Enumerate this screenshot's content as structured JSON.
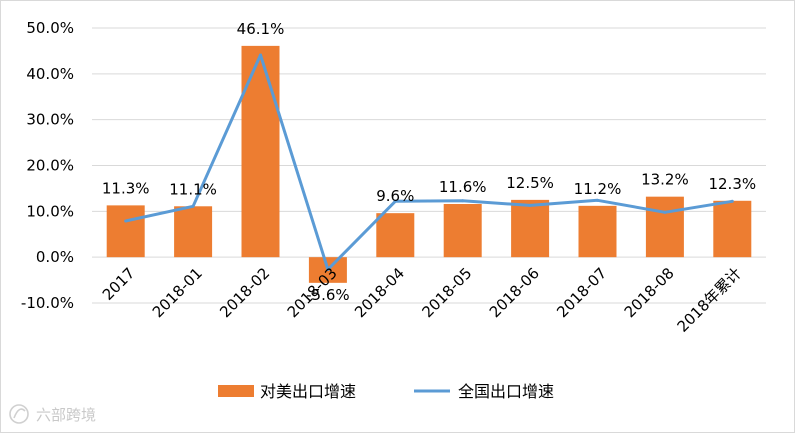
{
  "chart_data": {
    "type": "bar+line",
    "categories": [
      "2017",
      "2018-01",
      "2018-02",
      "2018-03",
      "2018-04",
      "2018-05",
      "2018-06",
      "2018-07",
      "2018-08",
      "2018年累计"
    ],
    "series": [
      {
        "name": "对美出口增速",
        "kind": "bar",
        "values": [
          11.3,
          11.1,
          46.1,
          -5.6,
          9.6,
          11.6,
          12.5,
          11.2,
          13.2,
          12.3
        ],
        "labels": [
          "11.3%",
          "11.1%",
          "46.1%",
          "-5.6%",
          "9.6%",
          "11.6%",
          "12.5%",
          "11.2%",
          "13.2%",
          "12.3%"
        ],
        "color": "#ed7d31"
      },
      {
        "name": "全国出口增速",
        "kind": "line",
        "values": [
          7.9,
          11.1,
          44.1,
          -2.7,
          12.2,
          12.3,
          11.3,
          12.4,
          9.8,
          12.2
        ],
        "color": "#5b9bd5"
      }
    ],
    "yticks": [
      "-10.0%",
      "0.0%",
      "10.0%",
      "20.0%",
      "30.0%",
      "40.0%",
      "50.0%"
    ],
    "ylim": [
      -10,
      50
    ],
    "ystep": 10,
    "grid": true,
    "legend": "bottom",
    "title": "",
    "xlabel": "",
    "ylabel": ""
  },
  "watermark": "六部跨境"
}
